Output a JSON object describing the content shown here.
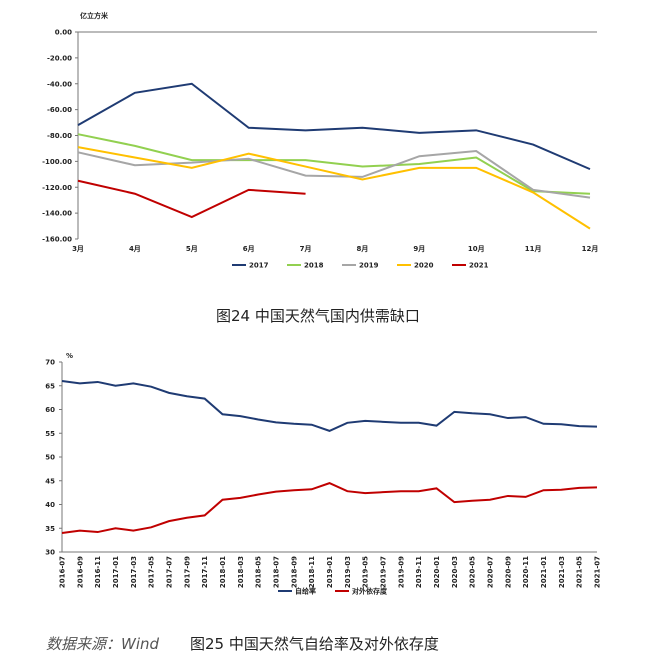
{
  "chart_data": [
    {
      "type": "line",
      "unit_label": "亿立方米",
      "categories": [
        "3月",
        "4月",
        "5月",
        "6月",
        "7月",
        "8月",
        "9月",
        "10月",
        "11月",
        "12月"
      ],
      "series": [
        {
          "name": "2017",
          "color": "#1f3b73",
          "values": [
            -72,
            -47,
            -40,
            -74,
            -76,
            -74,
            -78,
            -76,
            -87,
            -106
          ]
        },
        {
          "name": "2018",
          "color": "#92d050",
          "values": [
            -79,
            -88,
            -99,
            -99,
            -99,
            -104,
            -102,
            -97,
            -123,
            -125
          ]
        },
        {
          "name": "2019",
          "color": "#a6a6a6",
          "values": [
            -93,
            -103,
            -101,
            -98,
            -111,
            -112,
            -96,
            -92,
            -122,
            -128
          ]
        },
        {
          "name": "2020",
          "color": "#ffc000",
          "values": [
            -89,
            -97,
            -105,
            -94,
            -104,
            -114,
            -105,
            -105,
            -124,
            -152
          ]
        },
        {
          "name": "2021",
          "color": "#c00000",
          "values": [
            -115,
            -125,
            -143,
            -122,
            -125,
            null,
            null,
            null,
            null,
            null
          ]
        }
      ],
      "ylim": [
        -160,
        0
      ],
      "yticks": [
        {
          "value": 0,
          "label": "0.00"
        },
        {
          "value": -20,
          "label": "-20.00"
        },
        {
          "value": -40,
          "label": "-40.00"
        },
        {
          "value": -60,
          "label": "-60.00"
        },
        {
          "value": -80,
          "label": "-80.00"
        },
        {
          "value": -100,
          "label": "-100.00"
        },
        {
          "value": -120,
          "label": "-120.00"
        },
        {
          "value": -140,
          "label": "-140.00"
        },
        {
          "value": -160,
          "label": "-160.00"
        }
      ],
      "legend": "bottom"
    },
    {
      "type": "line",
      "unit_label": "%",
      "categories": [
        "2016-07",
        "2016-09",
        "2016-11",
        "2017-01",
        "2017-03",
        "2017-05",
        "2017-07",
        "2017-09",
        "2017-11",
        "2018-01",
        "2018-03",
        "2018-05",
        "2018-07",
        "2018-09",
        "2018-11",
        "2019-01",
        "2019-03",
        "2019-05",
        "2019-07",
        "2019-09",
        "2019-11",
        "2020-01",
        "2020-03",
        "2020-05",
        "2020-07",
        "2020-09",
        "2020-11",
        "2021-01",
        "2021-03",
        "2021-05",
        "2021-07"
      ],
      "series": [
        {
          "name": "自给率",
          "color": "#1f3b73",
          "values": [
            66,
            65.5,
            65.8,
            65,
            65.5,
            64.8,
            63.5,
            62.8,
            62.3,
            59,
            58.6,
            57.9,
            57.3,
            57,
            56.8,
            55.5,
            57.2,
            57.6,
            57.4,
            57.2,
            57.2,
            56.6,
            59.5,
            59.2,
            59,
            58.2,
            58.4,
            57,
            56.9,
            56.5,
            56.4
          ]
        },
        {
          "name": "对外依存度",
          "color": "#c00000",
          "values": [
            34,
            34.5,
            34.2,
            35,
            34.5,
            35.2,
            36.5,
            37.2,
            37.7,
            41,
            41.4,
            42.1,
            42.7,
            43,
            43.2,
            44.5,
            42.8,
            42.4,
            42.6,
            42.8,
            42.8,
            43.4,
            40.5,
            40.8,
            41,
            41.8,
            41.6,
            43,
            43.1,
            43.5,
            43.6
          ]
        }
      ],
      "ylim": [
        30,
        70
      ],
      "yticks": [
        30,
        35,
        40,
        45,
        50,
        55,
        60,
        65,
        70
      ],
      "legend": "bottom"
    }
  ],
  "figure_captions": [
    "图24 中国天然气国内供需缺口",
    "图25 中国天然气自给率及对外依存度"
  ],
  "source": "数据来源：Wind"
}
